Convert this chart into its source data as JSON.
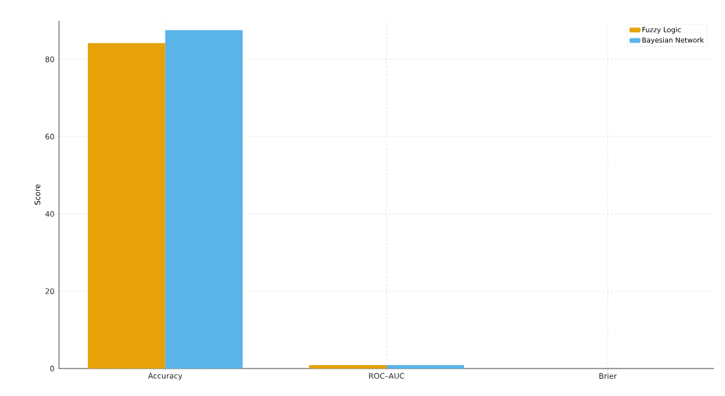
{
  "chart_data": {
    "type": "bar",
    "ylabel": "Score",
    "categories": [
      "Accuracy",
      "ROC–AUC",
      "Brier"
    ],
    "series": [
      {
        "name": "Fuzzy Logic",
        "color": "#e6a208",
        "values": [
          84.2,
          0.9,
          null
        ]
      },
      {
        "name": "Bayesian Network",
        "color": "#5ab4e8",
        "values": [
          87.5,
          0.9,
          null
        ]
      }
    ],
    "ylim": [
      0,
      90
    ],
    "yticks": [
      0,
      20,
      40,
      60,
      80
    ],
    "grid": true,
    "legend": "top right"
  }
}
